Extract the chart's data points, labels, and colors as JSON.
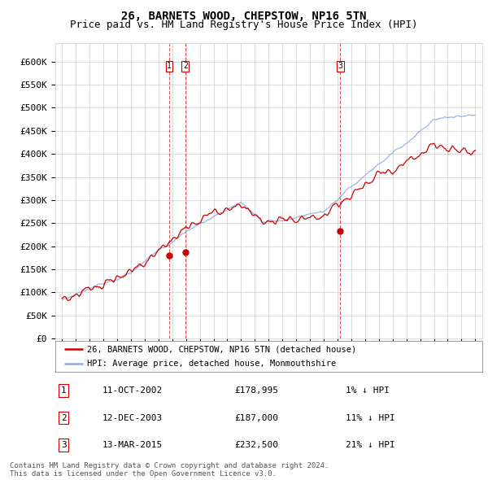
{
  "title": "26, BARNETS WOOD, CHEPSTOW, NP16 5TN",
  "subtitle": "Price paid vs. HM Land Registry's House Price Index (HPI)",
  "ylabel_ticks": [
    "£0",
    "£50K",
    "£100K",
    "£150K",
    "£200K",
    "£250K",
    "£300K",
    "£350K",
    "£400K",
    "£450K",
    "£500K",
    "£550K",
    "£600K"
  ],
  "ytick_values": [
    0,
    50000,
    100000,
    150000,
    200000,
    250000,
    300000,
    350000,
    400000,
    450000,
    500000,
    550000,
    600000
  ],
  "ylim": [
    0,
    640000
  ],
  "xlim_start": 1994.5,
  "xlim_end": 2025.5,
  "legend_line1": "26, BARNETS WOOD, CHEPSTOW, NP16 5TN (detached house)",
  "legend_line2": "HPI: Average price, detached house, Monmouthshire",
  "sale_dates": [
    2002.78,
    2003.95,
    2015.2
  ],
  "sale_prices": [
    178995,
    187000,
    232500
  ],
  "vline_x": [
    2002.78,
    2003.95,
    2015.2
  ],
  "table_data": [
    [
      "1",
      "11-OCT-2002",
      "£178,995",
      "1% ↓ HPI"
    ],
    [
      "2",
      "12-DEC-2003",
      "£187,000",
      "11% ↓ HPI"
    ],
    [
      "3",
      "13-MAR-2015",
      "£232,500",
      "21% ↓ HPI"
    ]
  ],
  "footer": "Contains HM Land Registry data © Crown copyright and database right 2024.\nThis data is licensed under the Open Government Licence v3.0.",
  "line_color_red": "#cc0000",
  "line_color_blue": "#88aadd",
  "vline_color": "#cc0000",
  "grid_color": "#cccccc",
  "bg_color": "#ffffff",
  "title_fontsize": 10,
  "subtitle_fontsize": 9,
  "tick_fontsize": 8,
  "label_fontsize": 8
}
